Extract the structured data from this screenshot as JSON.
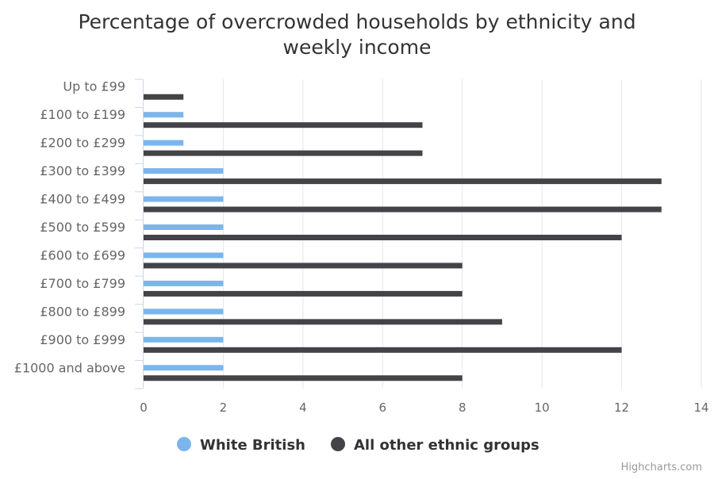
{
  "chart_data": {
    "type": "bar",
    "orientation": "horizontal",
    "title": "Percentage of overcrowded households by ethnicity and weekly income",
    "title_lines": [
      "Percentage of overcrowded households by ethnicity and",
      "weekly income"
    ],
    "categories": [
      "Up to £99",
      "£100 to £199",
      "£200 to £299",
      "£300 to £399",
      "£400 to £499",
      "£500 to £599",
      "£600 to £699",
      "£700 to £799",
      "£800 to £899",
      "£900 to £999",
      "£1000 and above"
    ],
    "series": [
      {
        "name": "White British",
        "color": "#7cb5ec",
        "values": [
          0,
          1,
          1,
          2,
          2,
          2,
          2,
          2,
          2,
          2,
          2
        ]
      },
      {
        "name": "All other ethnic groups",
        "color": "#434348",
        "values": [
          1,
          7,
          7,
          13,
          13,
          12,
          8,
          8,
          9,
          12,
          8
        ]
      }
    ],
    "xlim": [
      0,
      14
    ],
    "ticks": [
      0,
      2,
      4,
      6,
      8,
      10,
      12,
      14
    ],
    "grid": true,
    "legend_position": "bottom-center"
  },
  "credits": "Highcharts.com"
}
